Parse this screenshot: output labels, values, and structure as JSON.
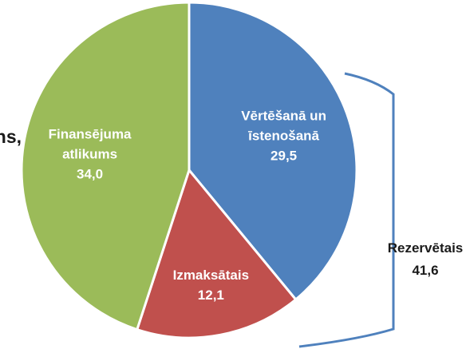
{
  "chart_data": {
    "type": "pie",
    "categories": [
      "Vērtēšanā un īstenošanā",
      "Izmaksātais",
      "Finansējuma atlikums"
    ],
    "values": [
      29.5,
      12.1,
      34.0
    ],
    "value_labels": [
      "29,5",
      "12,1",
      "34,0"
    ],
    "colors": [
      "#4f81bd",
      "#c0504d",
      "#9bbb59"
    ],
    "annotations": [
      {
        "text": "Rezervētais",
        "value": 41.6,
        "value_label": "41,6"
      },
      {
        "text": "ns,"
      }
    ]
  }
}
